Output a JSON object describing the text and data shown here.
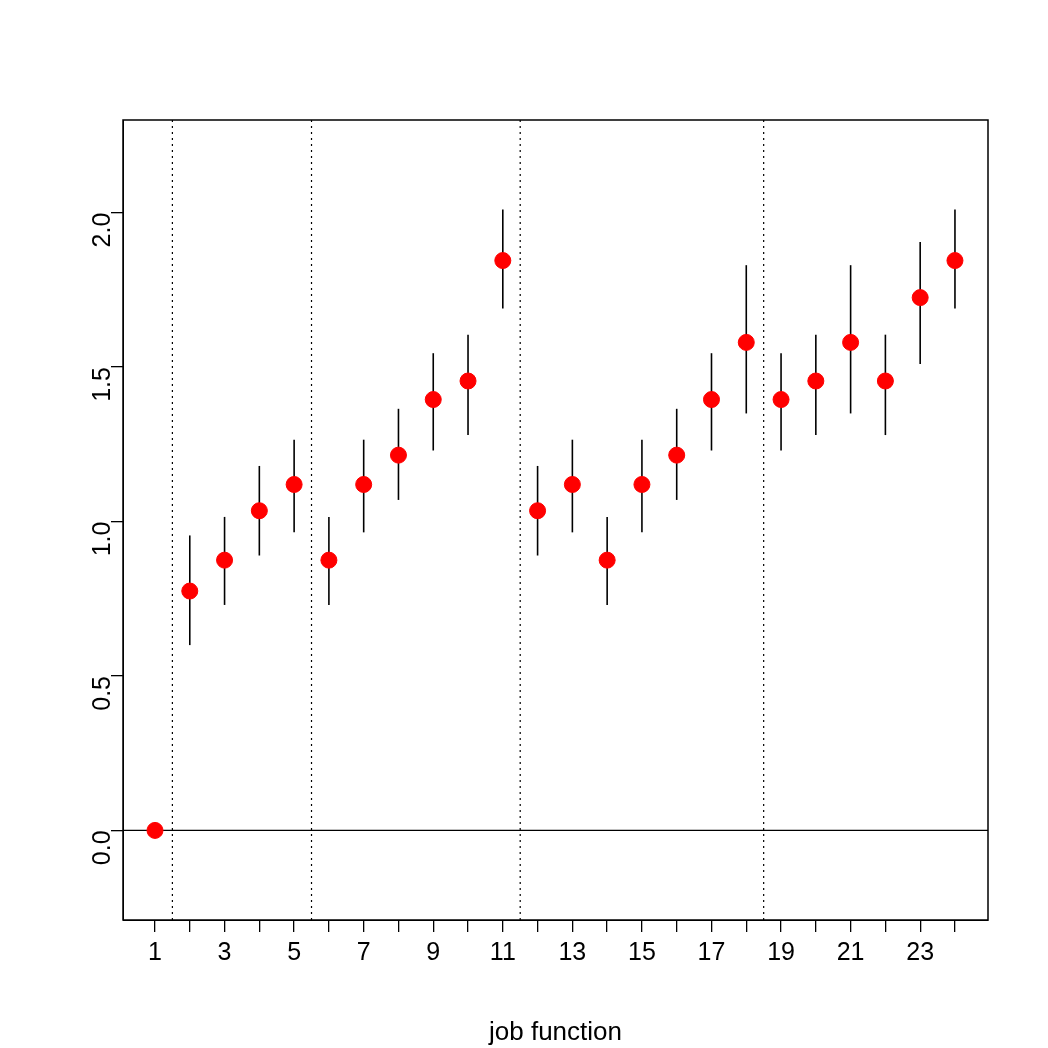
{
  "chart_data": {
    "type": "scatter",
    "xlabel": "job function",
    "x": [
      1,
      2,
      3,
      4,
      5,
      6,
      7,
      8,
      9,
      10,
      11,
      12,
      13,
      14,
      15,
      16,
      17,
      18,
      19,
      20,
      21,
      22,
      23,
      24
    ],
    "values": [
      0,
      0.775,
      0.875,
      1.035,
      1.12,
      0.875,
      1.12,
      1.215,
      1.395,
      1.455,
      1.845,
      1.035,
      1.12,
      0.875,
      1.12,
      1.215,
      1.395,
      1.58,
      1.395,
      1.455,
      1.58,
      1.455,
      1.725,
      1.845
    ],
    "errors": [
      null,
      [
        0.6,
        0.955
      ],
      [
        0.73,
        1.015
      ],
      [
        0.89,
        1.18
      ],
      [
        0.965,
        1.265
      ],
      [
        0.73,
        1.015
      ],
      [
        0.965,
        1.265
      ],
      [
        1.07,
        1.365
      ],
      [
        1.23,
        1.545
      ],
      [
        1.28,
        1.605
      ],
      [
        1.69,
        2.01
      ],
      [
        0.89,
        1.18
      ],
      [
        0.965,
        1.265
      ],
      [
        0.73,
        1.015
      ],
      [
        0.965,
        1.265
      ],
      [
        1.07,
        1.365
      ],
      [
        1.23,
        1.545
      ],
      [
        1.35,
        1.83
      ],
      [
        1.23,
        1.545
      ],
      [
        1.28,
        1.605
      ],
      [
        1.35,
        1.83
      ],
      [
        1.28,
        1.605
      ],
      [
        1.51,
        1.905
      ],
      [
        1.69,
        2.01
      ]
    ],
    "color": "#ff0000",
    "marker": "circle",
    "grid": false,
    "legend": false,
    "xlim": [
      0.08,
      24.95
    ],
    "ylim": [
      -0.29,
      2.3
    ],
    "xticks": [
      1,
      {
        "value": 2,
        "label": null
      },
      3,
      {
        "value": 4,
        "label": null
      },
      5,
      {
        "value": 6,
        "label": null
      },
      7,
      {
        "value": 8,
        "label": null
      },
      9,
      {
        "value": 10,
        "label": null
      },
      11,
      {
        "value": 12,
        "label": null
      },
      13,
      {
        "value": 14,
        "label": null
      },
      15,
      {
        "value": 16,
        "label": null
      },
      17,
      {
        "value": 18,
        "label": null
      },
      19,
      {
        "value": 20,
        "label": null
      },
      21,
      {
        "value": 22,
        "label": null
      },
      23,
      {
        "value": 24,
        "label": null
      }
    ],
    "yticks": [
      {
        "value": 0,
        "label": "0.0"
      },
      {
        "value": 0.5,
        "label": "0.5"
      },
      {
        "value": 1,
        "label": "1.0"
      },
      {
        "value": 1.5,
        "label": "1.5"
      },
      {
        "value": 2,
        "label": "2.0"
      }
    ],
    "ref_lines": [
      {
        "axis": "y",
        "value": 0,
        "line_style": "solid",
        "color": "#000000"
      },
      {
        "axis": "x",
        "value": 1.5,
        "line_style": "dotted",
        "color": "#000000"
      },
      {
        "axis": "x",
        "value": 5.5,
        "line_style": "dotted",
        "color": "#000000"
      },
      {
        "axis": "x",
        "value": 11.5,
        "line_style": "dotted",
        "color": "#000000"
      },
      {
        "axis": "x",
        "value": 18.5,
        "line_style": "dotted",
        "color": "#000000"
      }
    ]
  }
}
